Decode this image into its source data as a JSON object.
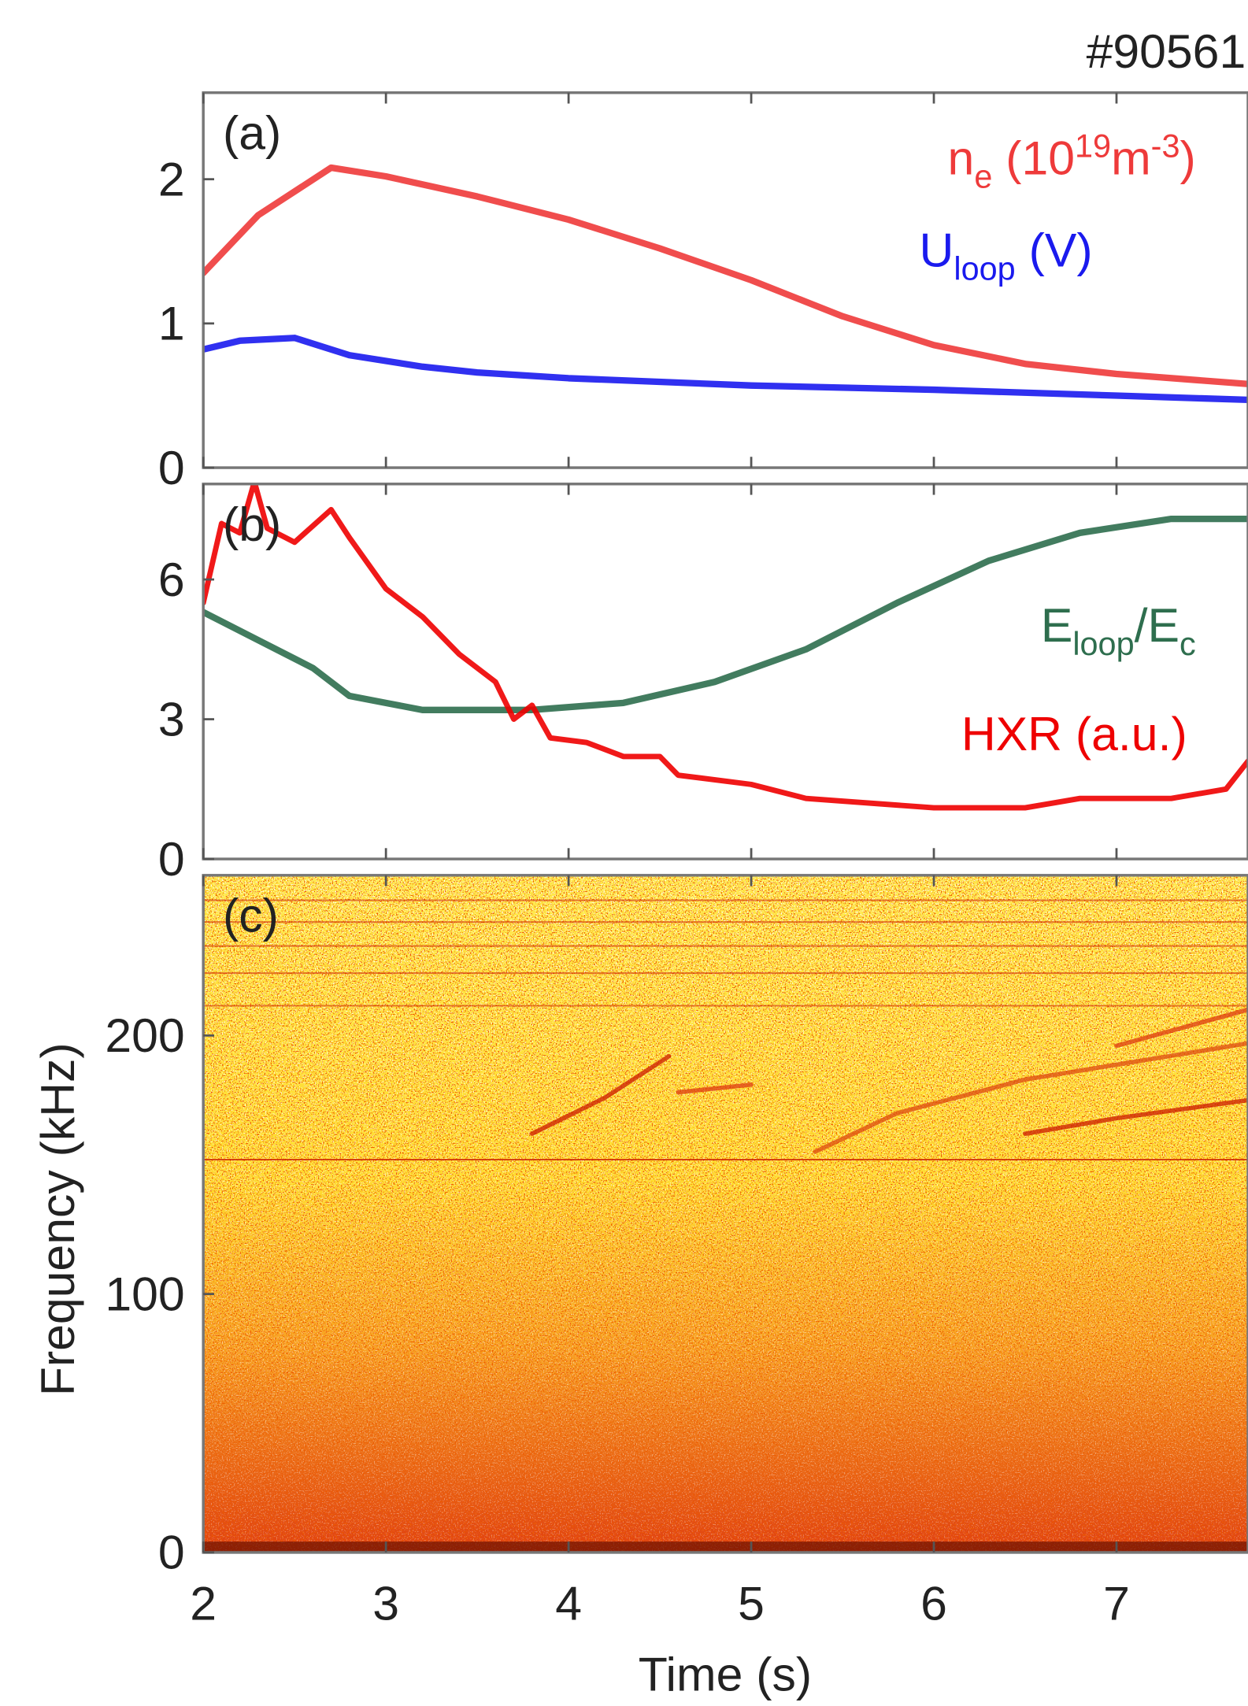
{
  "shot": "#90561",
  "chart_data": [
    {
      "type": "line",
      "label": "(a)",
      "xlim": [
        2,
        7.72
      ],
      "xticks": [
        2,
        3,
        4,
        5,
        6,
        7
      ],
      "ylim": [
        0,
        2.6
      ],
      "yticks": [
        0,
        1,
        2
      ],
      "series": [
        {
          "name": "n_e (10^{19}m^{-3})",
          "color": "#ee3a3a",
          "x": [
            2,
            2.3,
            2.7,
            3,
            3.5,
            4,
            4.5,
            5,
            5.5,
            6,
            6.5,
            7,
            7.72
          ],
          "values": [
            1.35,
            1.75,
            2.08,
            2.02,
            1.88,
            1.72,
            1.52,
            1.3,
            1.05,
            0.85,
            0.72,
            0.65,
            0.58
          ]
        },
        {
          "name": "U_{loop} (V)",
          "color": "#1a1aee",
          "x": [
            2,
            2.2,
            2.5,
            2.8,
            3.2,
            3.5,
            4,
            5,
            6,
            7,
            7.72
          ],
          "values": [
            0.82,
            0.88,
            0.9,
            0.78,
            0.7,
            0.66,
            0.62,
            0.57,
            0.54,
            0.5,
            0.47
          ]
        }
      ]
    },
    {
      "type": "line",
      "label": "(b)",
      "xlim": [
        2,
        7.72
      ],
      "xticks": [
        2,
        3,
        4,
        5,
        6,
        7
      ],
      "ylim": [
        0,
        8.05
      ],
      "yticks": [
        0,
        3,
        6
      ],
      "series": [
        {
          "name": "E_{loop}/E_c",
          "color": "#2e6e4e",
          "x": [
            2,
            2.3,
            2.6,
            2.8,
            3.2,
            3.8,
            4.3,
            4.8,
            5.3,
            5.8,
            6.3,
            6.8,
            7.3,
            7.72
          ],
          "values": [
            5.3,
            4.7,
            4.1,
            3.5,
            3.2,
            3.2,
            3.35,
            3.8,
            4.5,
            5.5,
            6.4,
            7.0,
            7.3,
            7.3
          ]
        },
        {
          "name": "HXR (a.u.)",
          "color": "#ee0000",
          "x": [
            2,
            2.1,
            2.2,
            2.28,
            2.35,
            2.5,
            2.7,
            2.8,
            3,
            3.2,
            3.4,
            3.6,
            3.7,
            3.8,
            3.9,
            4.1,
            4.3,
            4.5,
            4.6,
            5,
            5.3,
            6,
            6.5,
            6.8,
            7.3,
            7.6,
            7.72
          ],
          "values": [
            5.5,
            7.2,
            7.0,
            8.1,
            7.1,
            6.8,
            7.5,
            6.9,
            5.8,
            5.2,
            4.4,
            3.8,
            3.0,
            3.3,
            2.6,
            2.5,
            2.2,
            2.2,
            1.8,
            1.6,
            1.3,
            1.1,
            1.1,
            1.3,
            1.3,
            1.5,
            2.1
          ]
        }
      ]
    },
    {
      "type": "heatmap",
      "label": "(c)",
      "xlabel": "Time (s)",
      "ylabel": "Frequency (kHz)",
      "xlim": [
        2,
        7.72
      ],
      "xticks": [
        2,
        3,
        4,
        5,
        6,
        7
      ],
      "ylim": [
        0,
        262
      ],
      "yticks": [
        0,
        100,
        200
      ],
      "traces": [
        {
          "color": "#cc2000",
          "x": [
            2,
            7.72
          ],
          "values": [
            152,
            152
          ]
        },
        {
          "color": "#cc1a00",
          "x": [
            3.8,
            4.2,
            4.55
          ],
          "values": [
            162,
            176,
            192
          ]
        },
        {
          "color": "#dd3a10",
          "x": [
            4.6,
            5.0
          ],
          "values": [
            178,
            181
          ]
        },
        {
          "color": "#dd4a10",
          "x": [
            5.35,
            5.8,
            6.5,
            7.72
          ],
          "values": [
            155,
            170,
            183,
            197
          ]
        },
        {
          "color": "#cc1a00",
          "x": [
            6.5,
            7,
            7.72
          ],
          "values": [
            162,
            168,
            175
          ]
        },
        {
          "color": "#dd3a10",
          "x": [
            7,
            7.72
          ],
          "values": [
            196,
            210
          ]
        }
      ]
    }
  ]
}
